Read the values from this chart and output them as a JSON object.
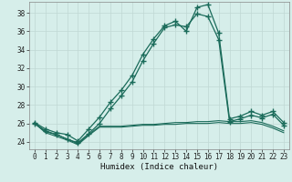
{
  "xlabel": "Humidex (Indice chaleur)",
  "bg_color": "#d6eeea",
  "grid_color": "#c0d8d4",
  "line_color": "#1a6b5a",
  "xlim": [
    -0.5,
    23.5
  ],
  "ylim": [
    23.2,
    39.2
  ],
  "yticks": [
    24,
    26,
    28,
    30,
    32,
    34,
    36,
    38
  ],
  "xticks": [
    0,
    1,
    2,
    3,
    4,
    5,
    6,
    7,
    8,
    9,
    10,
    11,
    12,
    13,
    14,
    15,
    16,
    17,
    18,
    19,
    20,
    21,
    22,
    23
  ],
  "line1_x": [
    0,
    1,
    2,
    3,
    4,
    5,
    6,
    7,
    8,
    9,
    10,
    11,
    12,
    13,
    14,
    15,
    16,
    17,
    18,
    19,
    20,
    21,
    22,
    23
  ],
  "line1_y": [
    26.1,
    25.4,
    25.0,
    24.8,
    24.1,
    25.4,
    26.7,
    28.3,
    29.6,
    31.2,
    33.5,
    35.2,
    36.6,
    37.1,
    36.0,
    38.6,
    38.9,
    35.8,
    26.5,
    26.8,
    27.3,
    26.9,
    27.3,
    26.1
  ],
  "line2_x": [
    0,
    1,
    2,
    3,
    4,
    5,
    6,
    7,
    8,
    9,
    10,
    11,
    12,
    13,
    14,
    15,
    16,
    17,
    18,
    19,
    20,
    21,
    22,
    23
  ],
  "line2_y": [
    26.0,
    25.2,
    24.8,
    24.3,
    23.9,
    24.9,
    26.0,
    27.6,
    29.0,
    30.5,
    32.8,
    34.7,
    36.4,
    36.7,
    36.5,
    37.9,
    37.6,
    35.1,
    26.2,
    26.5,
    26.9,
    26.6,
    27.0,
    25.8
  ],
  "line3_x": [
    0,
    1,
    2,
    3,
    4,
    5,
    6,
    7,
    8,
    9,
    10,
    11,
    12,
    13,
    14,
    15,
    16,
    17,
    18,
    19,
    20,
    21,
    22,
    23
  ],
  "line3_y": [
    26.0,
    25.1,
    24.8,
    24.3,
    23.8,
    24.8,
    25.7,
    25.7,
    25.7,
    25.8,
    25.9,
    25.9,
    26.0,
    26.1,
    26.1,
    26.2,
    26.2,
    26.3,
    26.2,
    26.2,
    26.3,
    26.1,
    25.7,
    25.2
  ],
  "line4_x": [
    0,
    1,
    2,
    3,
    4,
    5,
    6,
    7,
    8,
    9,
    10,
    11,
    12,
    13,
    14,
    15,
    16,
    17,
    18,
    19,
    20,
    21,
    22,
    23
  ],
  "line4_y": [
    26.0,
    25.0,
    24.6,
    24.2,
    23.7,
    24.7,
    25.6,
    25.6,
    25.6,
    25.7,
    25.8,
    25.8,
    25.9,
    25.9,
    26.0,
    26.0,
    26.0,
    26.1,
    26.0,
    26.0,
    26.1,
    25.9,
    25.5,
    25.0
  ],
  "xlabel_fontsize": 6.5,
  "tick_fontsize": 5.5
}
